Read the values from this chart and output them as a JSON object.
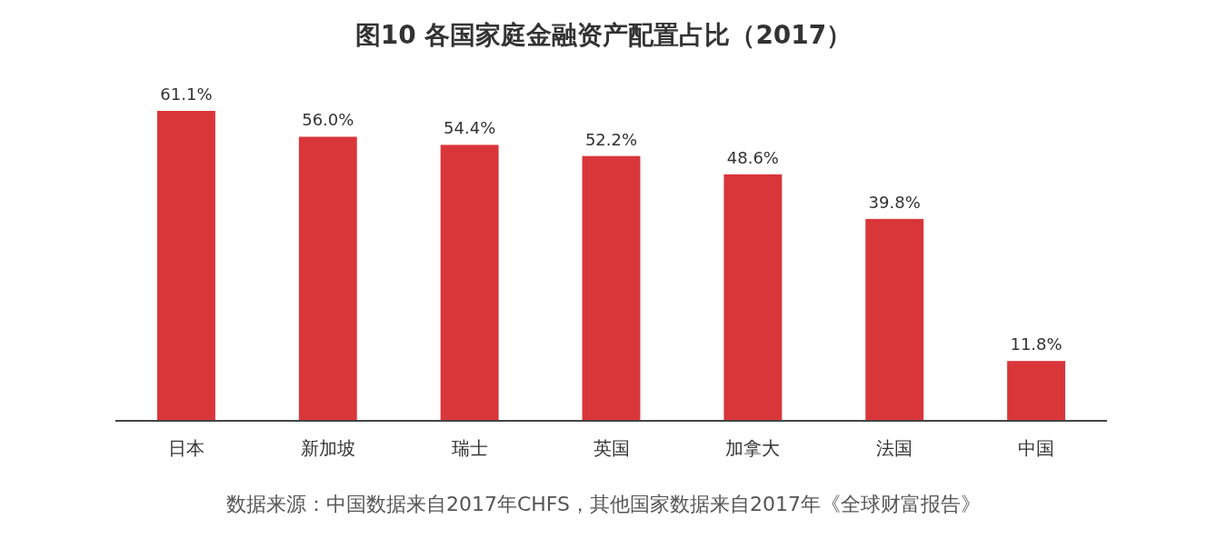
{
  "chart_data": {
    "type": "bar",
    "title": "图10 各国家庭金融资产配置占比（2017）",
    "categories": [
      "日本",
      "新加坡",
      "瑞士",
      "英国",
      "加拿大",
      "法国",
      "中国"
    ],
    "values": [
      61.1,
      56.0,
      54.4,
      52.2,
      48.6,
      39.8,
      11.8
    ],
    "value_labels": [
      "61.1%",
      "56.0%",
      "54.4%",
      "52.2%",
      "48.6%",
      "39.8%",
      "11.8%"
    ],
    "color": "#d9363a",
    "annotations": [
      "数据来源：中国数据来自2017年CHFS，其他国家数据来自2017年《全球财富报告》"
    ],
    "orientation": "vertical"
  }
}
